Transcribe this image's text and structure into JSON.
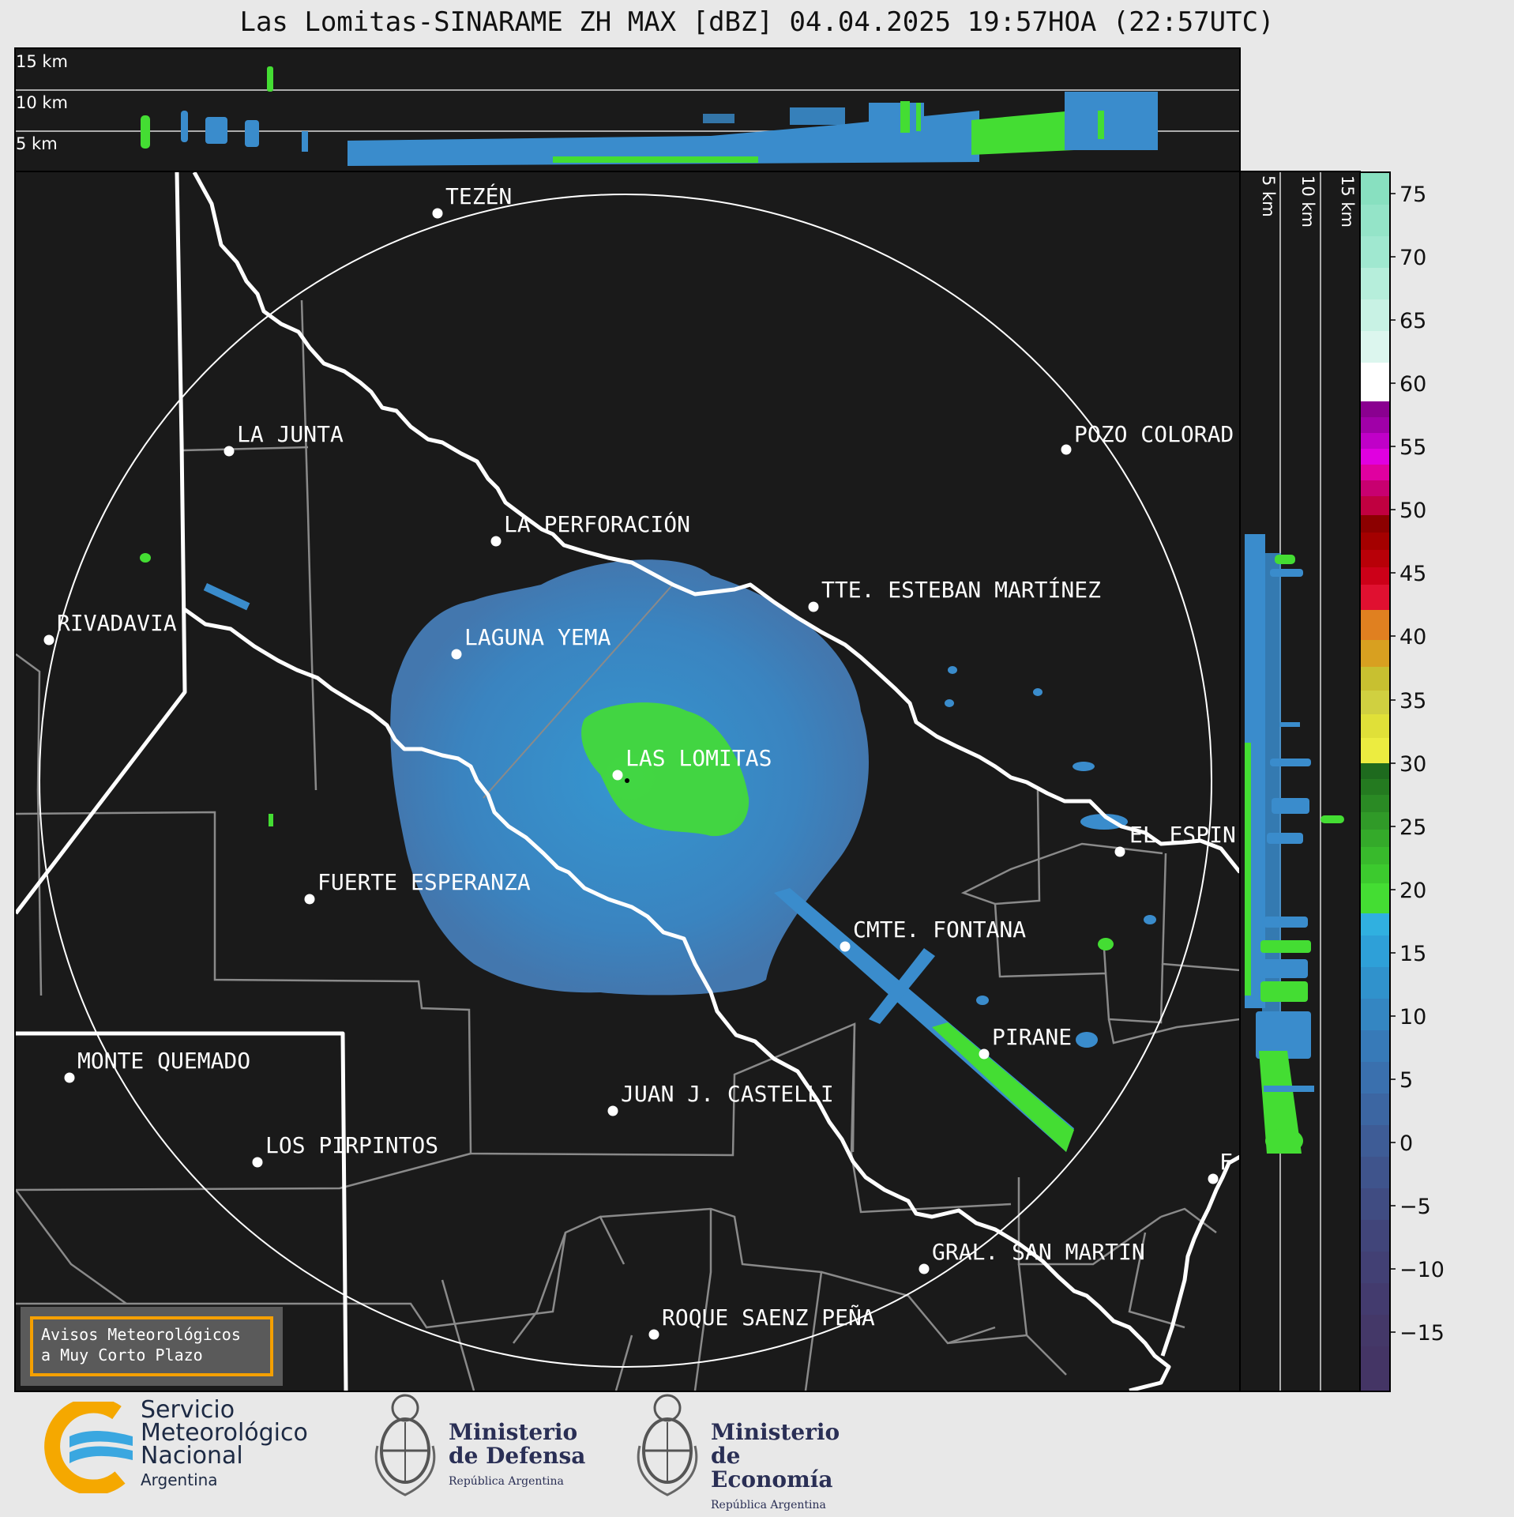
{
  "title": "Las Lomitas-SINARAME ZH MAX [dBZ] 04.04.2025 19:57HOA (22:57UTC)",
  "top_panel_altitudes": [
    "15 km",
    "10 km",
    "5 km"
  ],
  "side_panel_altitudes": [
    "5 km",
    "10 km",
    "15 km"
  ],
  "colorbar": {
    "ticks": [
      "75",
      "70",
      "65",
      "60",
      "55",
      "50",
      "45",
      "40",
      "35",
      "30",
      "25",
      "20",
      "15",
      "10",
      "5",
      "0",
      "−5",
      "−10",
      "−15"
    ],
    "range_dbz": [
      -20,
      77
    ]
  },
  "cities": [
    {
      "name": "TEZÉN"
    },
    {
      "name": "LA JUNTA"
    },
    {
      "name": "POZO COLORAD"
    },
    {
      "name": "LA PERFORACIÓN"
    },
    {
      "name": "TTE. ESTEBAN MARTÍNEZ"
    },
    {
      "name": "RIVADAVIA"
    },
    {
      "name": "LAGUNA YEMA"
    },
    {
      "name": "LAS LOMITAS"
    },
    {
      "name": "EL ESPIN"
    },
    {
      "name": "FUERTE ESPERANZA"
    },
    {
      "name": "CMTE. FONTANA"
    },
    {
      "name": "PIRANE"
    },
    {
      "name": "MONTE QUEMADO"
    },
    {
      "name": "JUAN J. CASTELLI"
    },
    {
      "name": "LOS PIRPINTOS"
    },
    {
      "name": "F"
    },
    {
      "name": "GRAL. SAN MARTIN"
    },
    {
      "name": "ROQUE SAENZ PEÑA"
    }
  ],
  "avisos": {
    "line1": "Avisos Meteorológicos",
    "line2": "a Muy Corto Plazo"
  },
  "logos": {
    "smn": {
      "line1": "Servicio",
      "line2": "Meteorológico",
      "line3": "Nacional",
      "country": "Argentina"
    },
    "defensa": {
      "line1": "Ministerio",
      "line2": "de Defensa",
      "sub": "República Argentina"
    },
    "economia": {
      "line1": "Ministerio",
      "line2": "de Economía",
      "sub": "República Argentina"
    }
  },
  "colors": {
    "panel_bg": "#1a1a1a",
    "echo_blue": "#3a8ccc",
    "echo_green": "#44dd33",
    "border_white": "#ffffff",
    "dept_gray": "#8a8a8a",
    "avisos_orange": "#f5a000"
  }
}
